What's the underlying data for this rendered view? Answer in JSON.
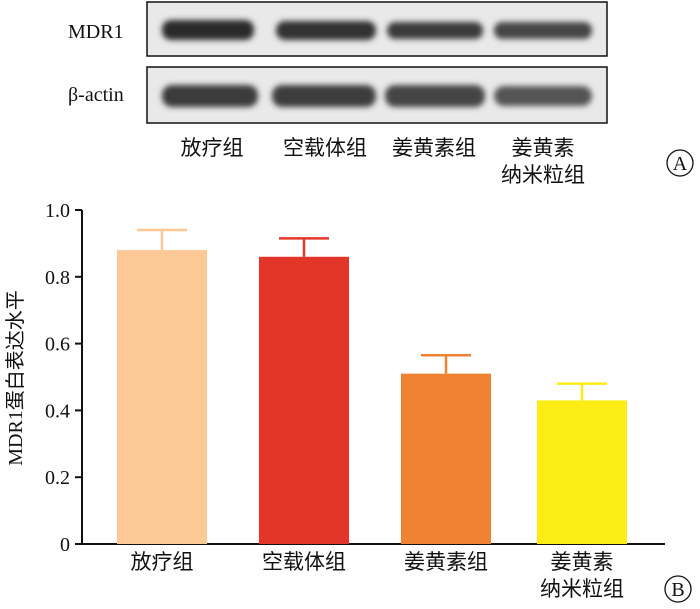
{
  "panel_a": {
    "tag": "A",
    "rows": [
      {
        "label": "MDR1"
      },
      {
        "label": "β-actin"
      }
    ],
    "lanes": [
      {
        "line1": "放疗组",
        "line2": ""
      },
      {
        "line1": "空载体组",
        "line2": ""
      },
      {
        "line1": "姜黄素组",
        "line2": ""
      },
      {
        "line1": "姜黄素",
        "line2": "纳米粒组"
      }
    ]
  },
  "panel_b": {
    "tag": "B"
  },
  "chart_data": {
    "type": "bar",
    "categories": [
      {
        "line1": "放疗组",
        "line2": ""
      },
      {
        "line1": "空载体组",
        "line2": ""
      },
      {
        "line1": "姜黄素组",
        "line2": ""
      },
      {
        "line1": "姜黄素",
        "line2": "纳米粒组"
      }
    ],
    "values": [
      0.88,
      0.86,
      0.51,
      0.43
    ],
    "errors": [
      0.06,
      0.055,
      0.055,
      0.05
    ],
    "colors": [
      "#fcc896",
      "#e2362b",
      "#ef8230",
      "#fcec16"
    ],
    "ylabel": "MDR1蛋白表达水平",
    "ylim": [
      0,
      1.0
    ],
    "yticks": [
      "0",
      "0.2",
      "0.4",
      "0.6",
      "0.8",
      "1.0"
    ],
    "ytick_values": [
      0,
      0.2,
      0.4,
      0.6,
      0.8,
      1.0
    ],
    "grid": false
  }
}
